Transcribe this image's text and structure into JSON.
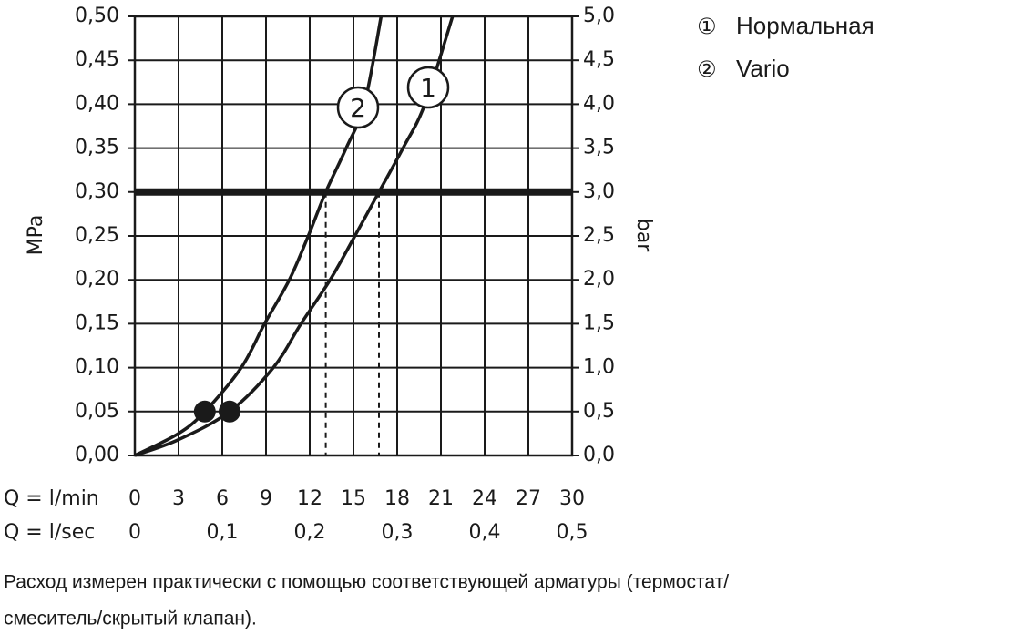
{
  "chart_data": {
    "type": "line",
    "y_label": "MPa",
    "y2_label": "bar",
    "x_label": "Q = l/min",
    "x2_label": "Q = l/sec",
    "xlim": [
      0,
      30
    ],
    "xticks": [
      0,
      3,
      6,
      9,
      12,
      15,
      18,
      21,
      24,
      27,
      30
    ],
    "x2lim": [
      0,
      0.5
    ],
    "x2ticks": [
      0,
      {
        "value": 0.1,
        "label": "0,1"
      },
      {
        "value": 0.2,
        "label": "0,2"
      },
      {
        "value": 0.3,
        "label": "0,3"
      },
      {
        "value": 0.4,
        "label": "0,4"
      },
      {
        "value": 0.5,
        "label": "0,5"
      }
    ],
    "ylim": [
      0,
      0.5
    ],
    "yticks": [
      {
        "value": 0,
        "label": "0,00"
      },
      {
        "value": 0.05,
        "label": "0,05"
      },
      {
        "value": 0.1,
        "label": "0,10"
      },
      {
        "value": 0.15,
        "label": "0,15"
      },
      {
        "value": 0.2,
        "label": "0,20"
      },
      {
        "value": 0.25,
        "label": "0,25"
      },
      {
        "value": 0.3,
        "label": "0,30"
      },
      {
        "value": 0.35,
        "label": "0,35"
      },
      {
        "value": 0.4,
        "label": "0,40"
      },
      {
        "value": 0.45,
        "label": "0,45"
      },
      {
        "value": 0.5,
        "label": "0,50"
      }
    ],
    "y2lim": [
      0,
      5
    ],
    "y2ticks": [
      {
        "value": 0,
        "label": "0,0"
      },
      {
        "value": 0.5,
        "label": "0,5"
      },
      {
        "value": 1,
        "label": "1,0"
      },
      {
        "value": 1.5,
        "label": "1,5"
      },
      {
        "value": 2,
        "label": "2,0"
      },
      {
        "value": 2.5,
        "label": "2,5"
      },
      {
        "value": 3,
        "label": "3,0"
      },
      {
        "value": 3.5,
        "label": "3,5"
      },
      {
        "value": 4,
        "label": "4,0"
      },
      {
        "value": 4.5,
        "label": "4,5"
      },
      {
        "value": 5,
        "label": "5,0"
      }
    ],
    "grid": true,
    "reference_line": 0.3,
    "series": [
      {
        "name": "Нормальная",
        "label": "1",
        "legend_symbol": "①",
        "color": "#1a1a1a",
        "x": [
          0,
          3,
          6.5,
          9.5,
          11.4,
          13.4,
          15.1,
          16.75,
          18.4,
          19.9,
          21.8
        ],
        "values": [
          0,
          0.018,
          0.05,
          0.1,
          0.15,
          0.2,
          0.25,
          0.3,
          0.35,
          0.4,
          0.5
        ],
        "marker": {
          "x": 6.5,
          "y": 0.05
        },
        "reference_flow": 16.75
      },
      {
        "name": "Vario",
        "label": "2",
        "legend_symbol": "②",
        "color": "#1a1a1a",
        "x": [
          0,
          3,
          4.8,
          7.3,
          8.9,
          10.6,
          11.9,
          13.1,
          14.5,
          15.75,
          16.9
        ],
        "values": [
          0,
          0.025,
          0.05,
          0.1,
          0.15,
          0.2,
          0.25,
          0.3,
          0.35,
          0.4,
          0.5
        ],
        "marker": {
          "x": 4.8,
          "y": 0.05
        },
        "reference_flow": 13.1
      }
    ],
    "note": [
      "Расход измерен практически с помощью соответствующей арматуры (термостат/",
      "смеситель/скрытый клапан)."
    ]
  }
}
